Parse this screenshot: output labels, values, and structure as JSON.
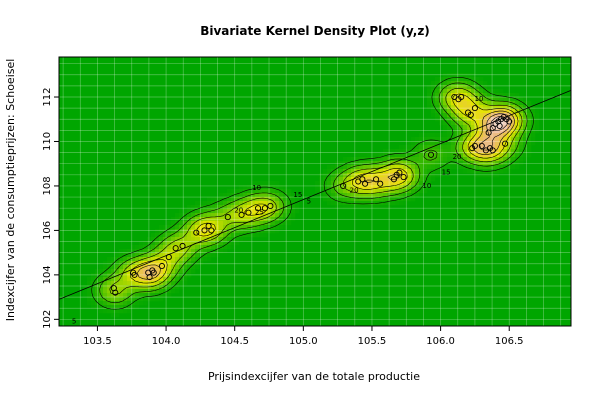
{
  "chart_data": {
    "type": "heatmap",
    "subtype": "bivariate-kernel-density-contour",
    "title": "Bivariate Kernel Density Plot (y,z)",
    "xlabel": "Prijsindexcijfer van de totale productie",
    "ylabel": "Indexcijfer van de consumptieprijzen: Schoeisel",
    "xlim": [
      103.22,
      106.95
    ],
    "ylim": [
      101.7,
      113.8
    ],
    "xticks": [
      "103.5",
      "104.0",
      "104.5",
      "105.0",
      "105.5",
      "106.0",
      "106.5"
    ],
    "yticks": [
      "102",
      "104",
      "106",
      "108",
      "110",
      "112"
    ],
    "grid": true,
    "contour_labels": [
      {
        "x": 103.33,
        "y": 101.9,
        "text": "5"
      },
      {
        "x": 104.53,
        "y": 106.9,
        "text": "20"
      },
      {
        "x": 104.68,
        "y": 106.8,
        "text": "25"
      },
      {
        "x": 104.66,
        "y": 107.9,
        "text": "10"
      },
      {
        "x": 104.96,
        "y": 107.6,
        "text": "15"
      },
      {
        "x": 105.04,
        "y": 107.3,
        "text": "5"
      },
      {
        "x": 105.37,
        "y": 107.8,
        "text": "20"
      },
      {
        "x": 105.9,
        "y": 108.0,
        "text": "10"
      },
      {
        "x": 106.04,
        "y": 108.6,
        "text": "15"
      },
      {
        "x": 106.12,
        "y": 109.3,
        "text": "20"
      },
      {
        "x": 106.28,
        "y": 111.9,
        "text": "10"
      }
    ],
    "points": [
      [
        103.62,
        103.4
      ],
      [
        103.63,
        103.2
      ],
      [
        103.76,
        104.1
      ],
      [
        103.77,
        104.0
      ],
      [
        103.87,
        104.1
      ],
      [
        103.88,
        103.9
      ],
      [
        103.9,
        104.2
      ],
      [
        103.91,
        104.1
      ],
      [
        103.97,
        104.4
      ],
      [
        104.02,
        104.8
      ],
      [
        104.07,
        105.2
      ],
      [
        104.12,
        105.3
      ],
      [
        104.22,
        105.9
      ],
      [
        104.28,
        106.0
      ],
      [
        104.31,
        106.2
      ],
      [
        104.33,
        106.0
      ],
      [
        104.45,
        106.6
      ],
      [
        104.55,
        106.7
      ],
      [
        104.6,
        106.8
      ],
      [
        104.67,
        107.0
      ],
      [
        104.72,
        107.0
      ],
      [
        104.76,
        107.1
      ],
      [
        105.29,
        108.0
      ],
      [
        105.4,
        108.2
      ],
      [
        105.43,
        108.3
      ],
      [
        105.45,
        108.1
      ],
      [
        105.53,
        108.3
      ],
      [
        105.56,
        108.1
      ],
      [
        105.66,
        108.3
      ],
      [
        105.68,
        108.5
      ],
      [
        105.7,
        108.6
      ],
      [
        105.73,
        108.4
      ],
      [
        105.93,
        109.4
      ],
      [
        106.1,
        112.0
      ],
      [
        106.13,
        111.9
      ],
      [
        106.15,
        112.0
      ],
      [
        106.2,
        111.3
      ],
      [
        106.22,
        111.2
      ],
      [
        106.25,
        111.5
      ],
      [
        106.23,
        109.7
      ],
      [
        106.25,
        109.8
      ],
      [
        106.3,
        109.8
      ],
      [
        106.33,
        109.6
      ],
      [
        106.36,
        109.7
      ],
      [
        106.38,
        109.6
      ],
      [
        106.35,
        110.4
      ],
      [
        106.38,
        110.6
      ],
      [
        106.4,
        110.8
      ],
      [
        106.42,
        110.9
      ],
      [
        106.44,
        111.0
      ],
      [
        106.46,
        111.1
      ],
      [
        106.48,
        111.0
      ],
      [
        106.5,
        110.9
      ],
      [
        106.43,
        110.7
      ],
      [
        106.47,
        109.9
      ]
    ]
  }
}
